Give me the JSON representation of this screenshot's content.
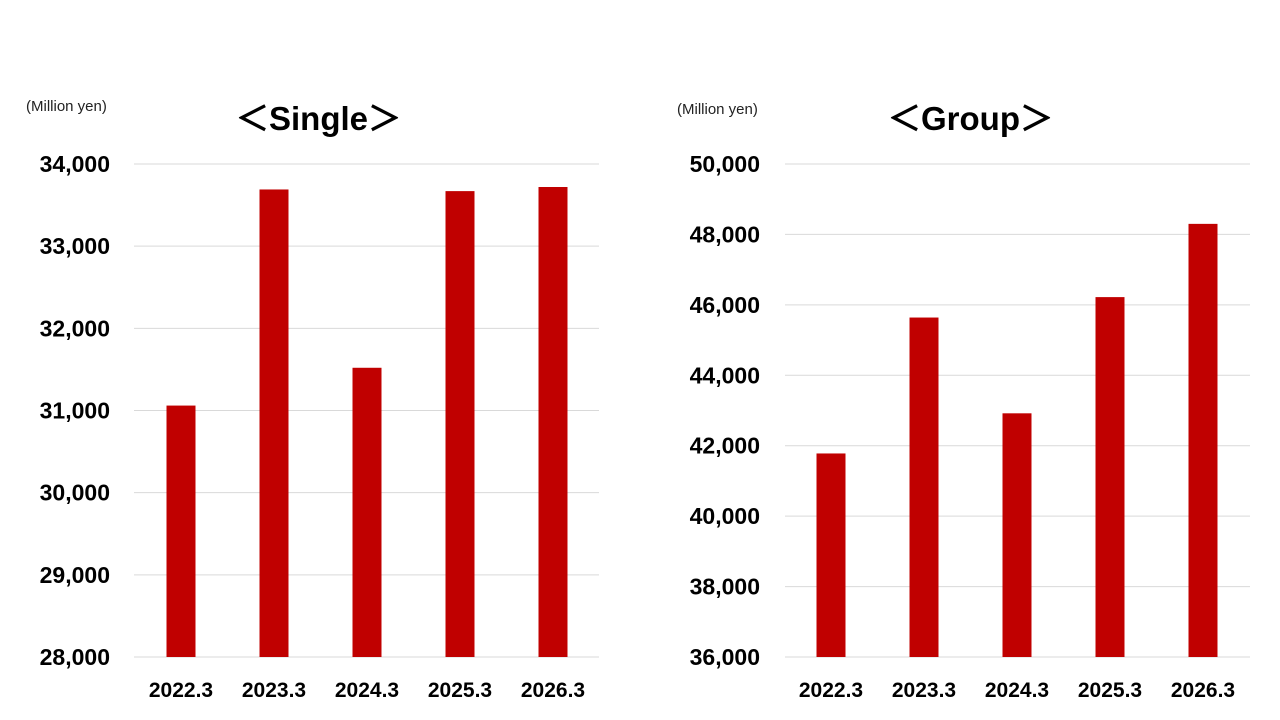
{
  "colors": {
    "bar": "#c00000",
    "grid": "#d9d9d9",
    "text": "#000000"
  },
  "chart_data": [
    {
      "type": "bar",
      "title": "＜Single＞",
      "unit_label": "(Million yen)",
      "categories": [
        "2022.3",
        "2023.3",
        "2024.3",
        "2025.3",
        "2026.3"
      ],
      "values": [
        31060,
        33690,
        31520,
        33670,
        33720
      ],
      "ylim": [
        28000,
        34000
      ],
      "yticks": [
        28000,
        29000,
        30000,
        31000,
        32000,
        33000,
        34000
      ],
      "ytick_labels": [
        "28,000",
        "29,000",
        "30,000",
        "31,000",
        "32,000",
        "33,000",
        "34,000"
      ],
      "grid": true,
      "legend": "none"
    },
    {
      "type": "bar",
      "title": "＜Group＞",
      "unit_label": "(Million yen)",
      "categories": [
        "2022.3",
        "2023.3",
        "2024.3",
        "2025.3",
        "2026.3"
      ],
      "values": [
        41780,
        45640,
        42920,
        46220,
        48300
      ],
      "ylim": [
        36000,
        50000
      ],
      "yticks": [
        36000,
        38000,
        40000,
        42000,
        44000,
        46000,
        48000,
        50000
      ],
      "ytick_labels": [
        "36,000",
        "38,000",
        "40,000",
        "42,000",
        "44,000",
        "46,000",
        "48,000",
        "50,000"
      ],
      "grid": true,
      "legend": "none"
    }
  ]
}
